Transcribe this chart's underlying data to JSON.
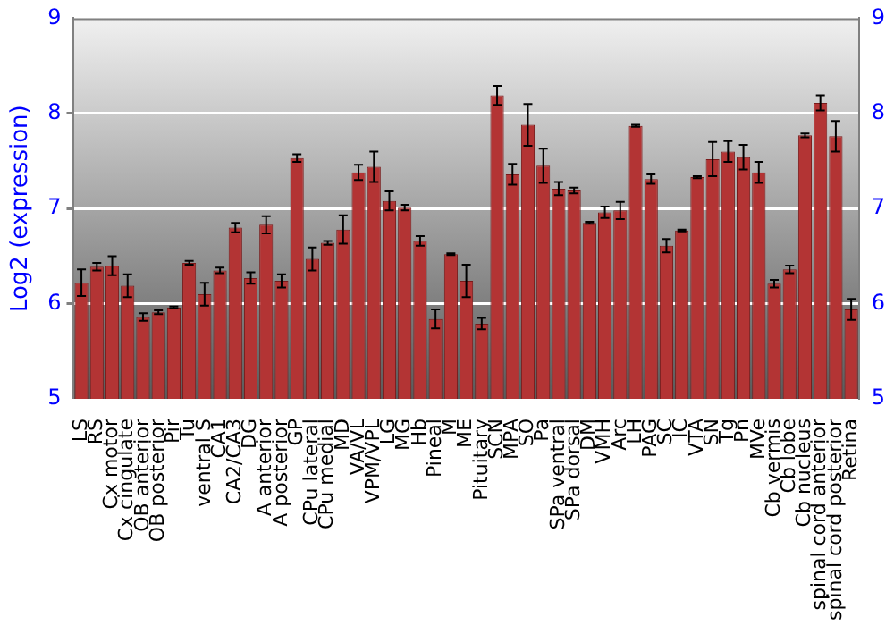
{
  "chart_data": {
    "type": "bar",
    "ylabel": "Log2 (expression)",
    "categories": [
      "LS",
      "RS",
      "Cx motor",
      "Cx cingulate",
      "OB anterior",
      "OB posterior",
      "Pir",
      "Tu",
      "ventral S",
      "CA1",
      "CA2/CA3",
      "DG",
      "A anterior",
      "A posterior",
      "GP",
      "CPu lateral",
      "CPu medial",
      "MD",
      "VA/VL",
      "VPM/VPL",
      "LG",
      "MG",
      "Hb",
      "Pineal",
      "M",
      "ME",
      "Pituitary",
      "SCN",
      "MPA",
      "SO",
      "Pa",
      "SPa ventral",
      "SPa dorsal",
      "DM",
      "VMH",
      "Arc",
      "LH",
      "PAG",
      "SC",
      "IC",
      "VTA",
      "SN",
      "Tg",
      "Pn",
      "MVe",
      "Cb vermis",
      "Cb lobe",
      "Cb nucleus",
      "spinal cord anterior",
      "spinal cord posterior",
      "Retina"
    ],
    "values": [
      6.22,
      6.39,
      6.4,
      6.19,
      5.86,
      5.91,
      5.96,
      6.43,
      6.1,
      6.35,
      6.8,
      6.27,
      6.83,
      6.24,
      7.53,
      6.47,
      6.64,
      6.78,
      7.38,
      7.44,
      7.08,
      7.01,
      6.66,
      5.84,
      6.52,
      6.24,
      5.79,
      8.19,
      7.36,
      7.88,
      7.45,
      7.21,
      7.19,
      6.85,
      6.96,
      6.98,
      7.87,
      7.31,
      6.61,
      6.77,
      7.33,
      7.52,
      7.6,
      7.54,
      7.38,
      6.21,
      6.36,
      7.77,
      8.11,
      7.76,
      5.94
    ],
    "errors": [
      0.14,
      0.04,
      0.1,
      0.12,
      0.04,
      0.02,
      0.01,
      0.02,
      0.12,
      0.03,
      0.05,
      0.06,
      0.09,
      0.07,
      0.04,
      0.12,
      0.02,
      0.15,
      0.08,
      0.16,
      0.1,
      0.03,
      0.05,
      0.1,
      0.01,
      0.17,
      0.06,
      0.1,
      0.11,
      0.22,
      0.18,
      0.07,
      0.03,
      0.01,
      0.06,
      0.09,
      0.01,
      0.05,
      0.07,
      0.01,
      0.01,
      0.18,
      0.11,
      0.13,
      0.11,
      0.04,
      0.04,
      0.02,
      0.08,
      0.16,
      0.11
    ],
    "color": "#b33434",
    "ylim": [
      5,
      9
    ],
    "yticks": [
      5,
      6,
      7,
      8,
      9
    ],
    "y2lim": [
      5,
      9
    ],
    "y2ticks": [
      5,
      6,
      7,
      8,
      9
    ],
    "grid": "y",
    "legend": false
  }
}
